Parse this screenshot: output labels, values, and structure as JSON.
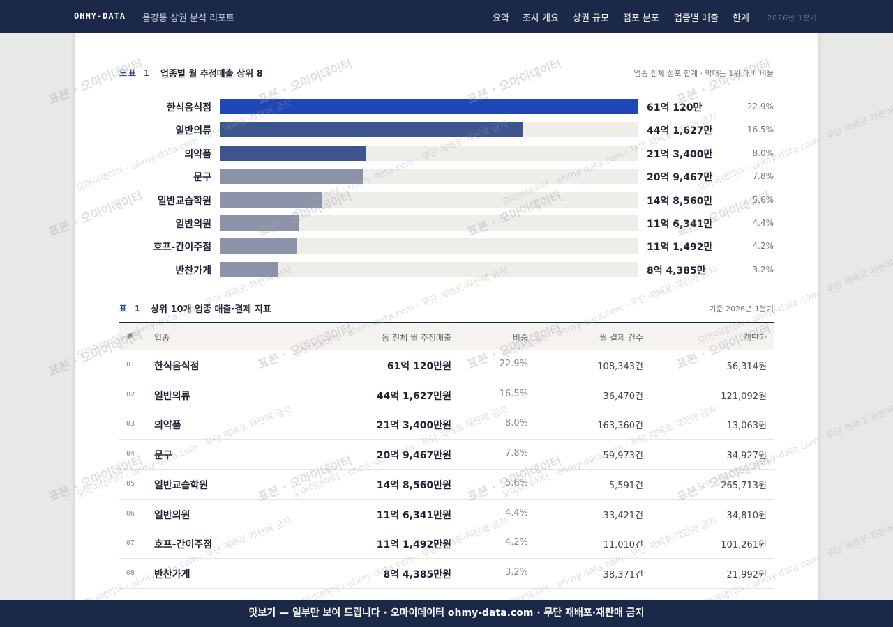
{
  "header": {
    "brand": "OHMY-DATA",
    "subtitle": "용강동 상권 분석 리포트",
    "nav": [
      "요약",
      "조사 개요",
      "상권 규모",
      "점포 분포",
      "업종별 매출",
      "한계"
    ],
    "period": "2026년 1분기"
  },
  "chart_data": {
    "type": "bar",
    "orientation": "horizontal",
    "label": "도표 1",
    "title": "업종별 월 추정매출 상위 8",
    "subtitle": "업종 전체 점포 합계 · 막대는 1위 대비 비율",
    "categories": [
      "한식음식점",
      "일반의류",
      "의약품",
      "문구",
      "일반교습학원",
      "일반의원",
      "호프-간이주점",
      "반찬가게"
    ],
    "values": [
      610120,
      441627,
      213400,
      209467,
      148560,
      116341,
      111492,
      84385
    ],
    "value_labels": [
      "61억 120만",
      "44억 1,627만",
      "21억 3,400만",
      "20억 9,467만",
      "14억 8,560만",
      "11억 6,341만",
      "11억 1,492만",
      "8억 4,385만"
    ],
    "share_labels": [
      "22.9%",
      "16.5%",
      "8.0%",
      "7.8%",
      "5.6%",
      "4.4%",
      "4.2%",
      "3.2%"
    ],
    "colors": [
      "#1f47b8",
      "#3f5590",
      "#3f5590",
      "#8a93a8",
      "#8a93a8",
      "#8a93a8",
      "#8a93a8",
      "#8a93a8"
    ],
    "track_color": "#eeede8"
  },
  "table": {
    "label": "표 1",
    "title": "상위 10개 업종 매출·결제 지표",
    "note": "기준 2026년 1분기",
    "columns": [
      "#",
      "업종",
      "동 전체 월 추정매출",
      "비중",
      "월 결제 건수",
      "객단가"
    ],
    "rows": [
      [
        "01",
        "한식음식점",
        "61억 120만원",
        "22.9%",
        "108,343건",
        "56,314원"
      ],
      [
        "02",
        "일반의류",
        "44억 1,627만원",
        "16.5%",
        "36,470건",
        "121,092원"
      ],
      [
        "03",
        "의약품",
        "21억 3,400만원",
        "8.0%",
        "163,360건",
        "13,063원"
      ],
      [
        "04",
        "문구",
        "20억 9,467만원",
        "7.8%",
        "59,973건",
        "34,927원"
      ],
      [
        "05",
        "일반교습학원",
        "14억 8,560만원",
        "5.6%",
        "5,591건",
        "265,713원"
      ],
      [
        "06",
        "일반의원",
        "11억 6,341만원",
        "4.4%",
        "33,421건",
        "34,810원"
      ],
      [
        "07",
        "호프-간이주점",
        "11억 1,492만원",
        "4.2%",
        "11,010건",
        "101,261원"
      ],
      [
        "08",
        "반찬가게",
        "8억 4,385만원",
        "3.2%",
        "38,371건",
        "21,992원"
      ]
    ]
  },
  "watermark": [
    "표본 · 오마이데이터",
    "오마이데이터 · ohmy-data.com · 무단 재배포·재판매 금지"
  ],
  "footer": "맛보기 — 일부만 보여 드립니다 · 오마이데이터 ohmy-data.com · 무단 재배포·재판매 금지"
}
